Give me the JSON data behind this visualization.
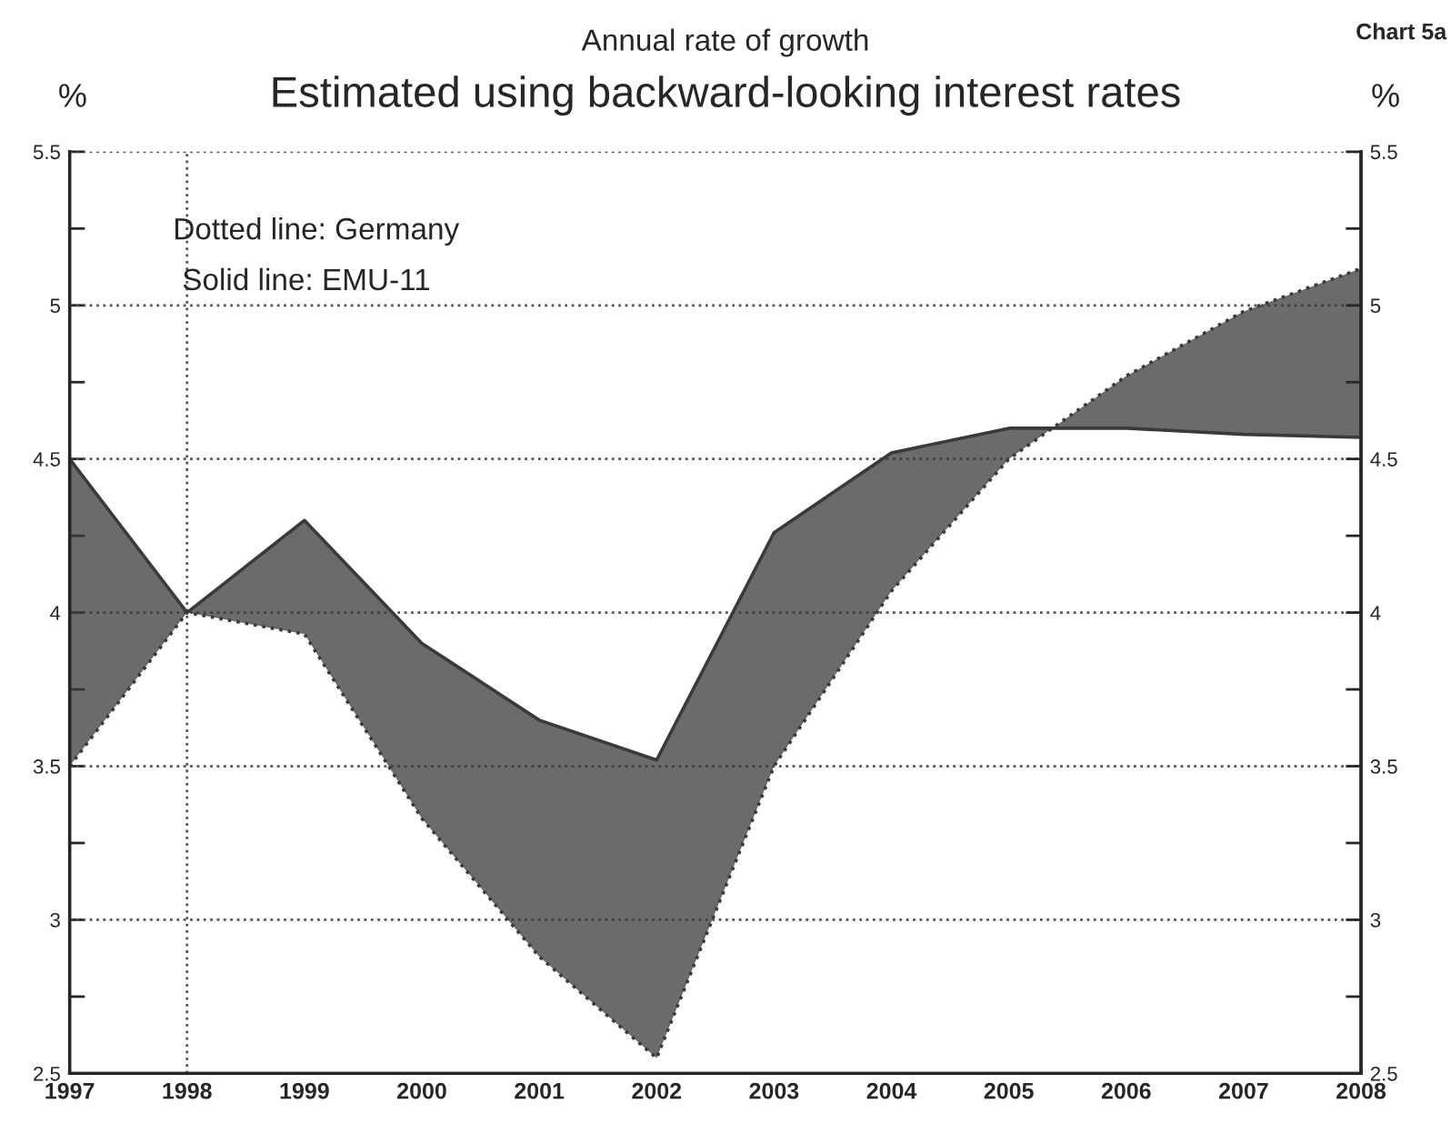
{
  "chart_data": {
    "type": "line",
    "title": "Estimated using backward-looking interest rates",
    "subtitle": "Annual rate of growth",
    "ylabel": "%",
    "y2label": "%",
    "annotations": [
      "Chart 5a",
      "Dotted line: Germany",
      "Solid line: EMU-11"
    ],
    "x": [
      1997,
      1998,
      1999,
      2000,
      2001,
      2002,
      2003,
      2004,
      2005,
      2006,
      2007,
      2008
    ],
    "series": [
      {
        "color": "#3a3a3a",
        "line_style": "dotted",
        "values": [
          3.5,
          4.0,
          3.93,
          3.33,
          2.88,
          2.55,
          3.5,
          4.07,
          4.5,
          4.77,
          4.98,
          5.12
        ]
      },
      {
        "color": "#3a3a3a",
        "line_style": "solid",
        "values": [
          4.5,
          4.0,
          4.3,
          3.9,
          3.65,
          3.52,
          4.26,
          4.52,
          4.6,
          4.6,
          4.58,
          4.57
        ],
        "lower": [
          3.5,
          4.0,
          3.93,
          3.33,
          2.88,
          2.55,
          3.5,
          4.07,
          4.5,
          4.77,
          4.98,
          5.12
        ],
        "upper": [
          4.5,
          4.0,
          4.3,
          3.9,
          3.65,
          3.52,
          4.26,
          4.52,
          4.6,
          4.6,
          4.58,
          4.57
        ]
      }
    ],
    "xlim": [
      1997,
      2008
    ],
    "xticks": [
      1997,
      1998,
      1999,
      2000,
      2001,
      2002,
      2003,
      2004,
      2005,
      2006,
      2007,
      2008
    ],
    "ylim": [
      2.5,
      5.5
    ],
    "yticks": [
      2.5,
      {
        "value": 2.75,
        "label": null
      },
      3,
      {
        "value": 3.25,
        "label": null
      },
      3.5,
      {
        "value": 3.75,
        "label": null
      },
      4,
      {
        "value": 4.25,
        "label": null
      },
      4.5,
      {
        "value": 4.75,
        "label": null
      },
      5,
      {
        "value": 5.25,
        "label": null
      },
      5.5
    ],
    "y2lim": [
      2.5,
      5.5
    ],
    "y2ticks": [
      2.5,
      {
        "value": 2.75,
        "label": null
      },
      3,
      {
        "value": 3.25,
        "label": null
      },
      3.5,
      {
        "value": 3.75,
        "label": null
      },
      4,
      {
        "value": 4.25,
        "label": null
      },
      4.5,
      {
        "value": 4.75,
        "label": null
      },
      5,
      {
        "value": 5.25,
        "label": null
      },
      5.5
    ],
    "grid": "y",
    "ref_lines": [
      {
        "axis": "x",
        "value": 1998,
        "label": null,
        "color": "#555555",
        "line_style": "dotted"
      }
    ],
    "legend": false
  }
}
